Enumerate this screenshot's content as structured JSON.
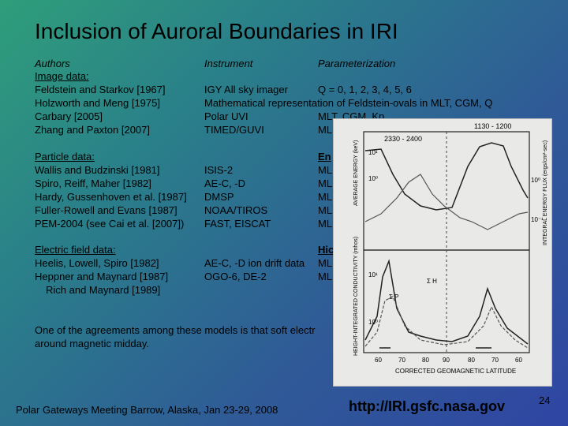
{
  "slide": {
    "title": "Inclusion of Auroral Boundaries in IRI",
    "headers": {
      "authors": "Authors",
      "instrument": "Instrument",
      "parameterization": "Parameterization"
    },
    "image_section": {
      "label": "Image data:",
      "rows": [
        {
          "author": "Feldstein and Starkov [1967]",
          "instrument": "IGY All sky imager",
          "param": "Q = 0, 1, 2, 3, 4, 5, 6"
        },
        {
          "author": "Holzworth and Meng [1975]",
          "instrument": "Mathematical representation of Feldstein-ovals in MLT, CGM, Q",
          "param": ""
        },
        {
          "author": "Carbary [2005]",
          "instrument": "Polar UVI",
          "param": "MLT, CGM, Kp"
        },
        {
          "author": "Zhang and Paxton [2007]",
          "instrument": "TIMED/GUVI",
          "param": "ML"
        }
      ]
    },
    "particle_section": {
      "label": "Particle data:",
      "param_label": "En",
      "rows": [
        {
          "author": "Wallis and Budzinski [1981]",
          "instrument": "ISIS-2",
          "param": "ML"
        },
        {
          "author": "Spiro, Reiff, Maher [1982]",
          "instrument": "AE-C, -D",
          "param": "ML"
        },
        {
          "author": "Hardy, Gussenhoven et al. [1987]",
          "instrument": "DMSP",
          "param": "ML"
        },
        {
          "author": "Fuller-Rowell and Evans [1987]",
          "instrument": "NOAA/TIROS",
          "param": "ML"
        },
        {
          "author": "PEM-2004 (see Cai et al. [2007])",
          "instrument": "FAST, EISCAT",
          "param": "ML"
        }
      ]
    },
    "electric_section": {
      "label": "Electric field data:",
      "param_label": "Hic",
      "rows": [
        {
          "author": "Heelis, Lowell, Spiro [1982]",
          "instrument": "AE-C, -D ion drift data",
          "param": "ML"
        },
        {
          "author": "Heppner and Maynard [1987]",
          "instrument": "OGO-6, DE-2",
          "param": "ML"
        },
        {
          "author": "Rich and Maynard [1989]",
          "instrument": "",
          "param": ""
        }
      ]
    },
    "note_line1": "One of the agreements among these models is that soft electr",
    "note_line2": "around magnetic midday.",
    "footer_left": "Polar Gateways Meeting Barrow, Alaska, Jan 23-29, 2008",
    "footer_url": "http://IRI.gsfc.nasa.gov",
    "page_number": "24"
  },
  "figure": {
    "top_labels": [
      "2330 - 2400",
      "1130 - 1200"
    ],
    "ylabel_top_left": "AVERAGE ENERGY (keV)",
    "ylabel_top_right": "INTEGRAL ENERGY FLUX (ergs/cm²-sec)",
    "ylabel_bottom_left": "HEIGHT-INTEGRATED CONDUCTIVITY (mhos)",
    "tick_left_top": [
      "10¹",
      "10⁰"
    ],
    "tick_right_top": [
      "10⁰",
      "10⁻¹"
    ],
    "tick_bottom": [
      "10¹",
      "10⁰"
    ],
    "xticks": [
      "60",
      "70",
      "80",
      "90",
      "80",
      "70",
      "60"
    ],
    "xlabel": "CORRECTED GEOMAGNETIC LATITUDE",
    "legend_h": "Σ H",
    "legend_p": "Σ P"
  }
}
